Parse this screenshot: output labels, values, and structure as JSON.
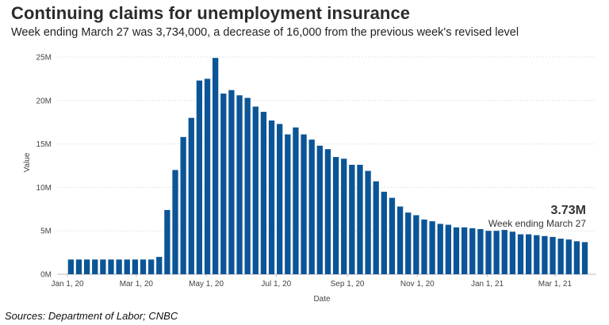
{
  "header": {
    "title": "Continuing claims for unemployment insurance",
    "subtitle": "Week ending March 27 was 3,734,000, a decrease of 16,000 from the previous week's revised level"
  },
  "footer": {
    "source": "Sources:  Department of Labor; CNBC"
  },
  "chart_data": {
    "type": "bar",
    "title": "Continuing claims for unemployment insurance",
    "subtitle": "Week ending March 27 was 3,734,000, a decrease of 16,000 from the previous week's revised level",
    "xlabel": "Date",
    "ylabel": "Value",
    "bar_color": "#0b5596",
    "grid": true,
    "ylim": [
      0,
      25000000
    ],
    "ytick_values": [
      0,
      5000000,
      10000000,
      15000000,
      20000000,
      25000000
    ],
    "ytick_labels": [
      "0M",
      "5M",
      "10M",
      "15M",
      "20M",
      "25M"
    ],
    "xtick_labels": [
      "Jan 1, 20",
      "Mar 1, 20",
      "May 1, 20",
      "Jul 1, 20",
      "Sep 1, 20",
      "Nov 1, 20",
      "Jan 1, 21",
      "Mar 1, 21"
    ],
    "xtick_dates": [
      "2020-01-01",
      "2020-03-01",
      "2020-05-01",
      "2020-07-01",
      "2020-09-01",
      "2020-11-01",
      "2021-01-01",
      "2021-03-01"
    ],
    "x_range": [
      "2019-12-23",
      "2021-04-06"
    ],
    "x": [
      "2020-01-04",
      "2020-01-11",
      "2020-01-18",
      "2020-01-25",
      "2020-02-01",
      "2020-02-08",
      "2020-02-15",
      "2020-02-22",
      "2020-02-29",
      "2020-03-07",
      "2020-03-14",
      "2020-03-21",
      "2020-03-28",
      "2020-04-04",
      "2020-04-11",
      "2020-04-18",
      "2020-04-25",
      "2020-05-02",
      "2020-05-09",
      "2020-05-16",
      "2020-05-23",
      "2020-05-30",
      "2020-06-06",
      "2020-06-13",
      "2020-06-20",
      "2020-06-27",
      "2020-07-04",
      "2020-07-11",
      "2020-07-18",
      "2020-07-25",
      "2020-08-01",
      "2020-08-08",
      "2020-08-15",
      "2020-08-22",
      "2020-08-29",
      "2020-09-05",
      "2020-09-12",
      "2020-09-19",
      "2020-09-26",
      "2020-10-03",
      "2020-10-10",
      "2020-10-17",
      "2020-10-24",
      "2020-10-31",
      "2020-11-07",
      "2020-11-14",
      "2020-11-21",
      "2020-11-28",
      "2020-12-05",
      "2020-12-12",
      "2020-12-19",
      "2020-12-26",
      "2021-01-02",
      "2021-01-09",
      "2021-01-16",
      "2021-01-23",
      "2021-01-30",
      "2021-02-06",
      "2021-02-13",
      "2021-02-20",
      "2021-02-27",
      "2021-03-06",
      "2021-03-13",
      "2021-03-20",
      "2021-03-27"
    ],
    "values": [
      1700000,
      1700000,
      1700000,
      1700000,
      1700000,
      1700000,
      1700000,
      1700000,
      1700000,
      1700000,
      1700000,
      2000000,
      7400000,
      12000000,
      15800000,
      18000000,
      22300000,
      22500000,
      24900000,
      20800000,
      21200000,
      20600000,
      20300000,
      19300000,
      18700000,
      17700000,
      17300000,
      16100000,
      16900000,
      16100000,
      15500000,
      14800000,
      14400000,
      13500000,
      13300000,
      12600000,
      12600000,
      11900000,
      10700000,
      9500000,
      8800000,
      7800000,
      7100000,
      6800000,
      6300000,
      6100000,
      5800000,
      5700000,
      5400000,
      5400000,
      5300000,
      5200000,
      5000000,
      5000000,
      5100000,
      4900000,
      4600000,
      4600000,
      4500000,
      4400000,
      4300000,
      4100000,
      4000000,
      3800000,
      3700000
    ],
    "annotation": {
      "value": "3.73M",
      "label": "Week ending March 27"
    }
  }
}
